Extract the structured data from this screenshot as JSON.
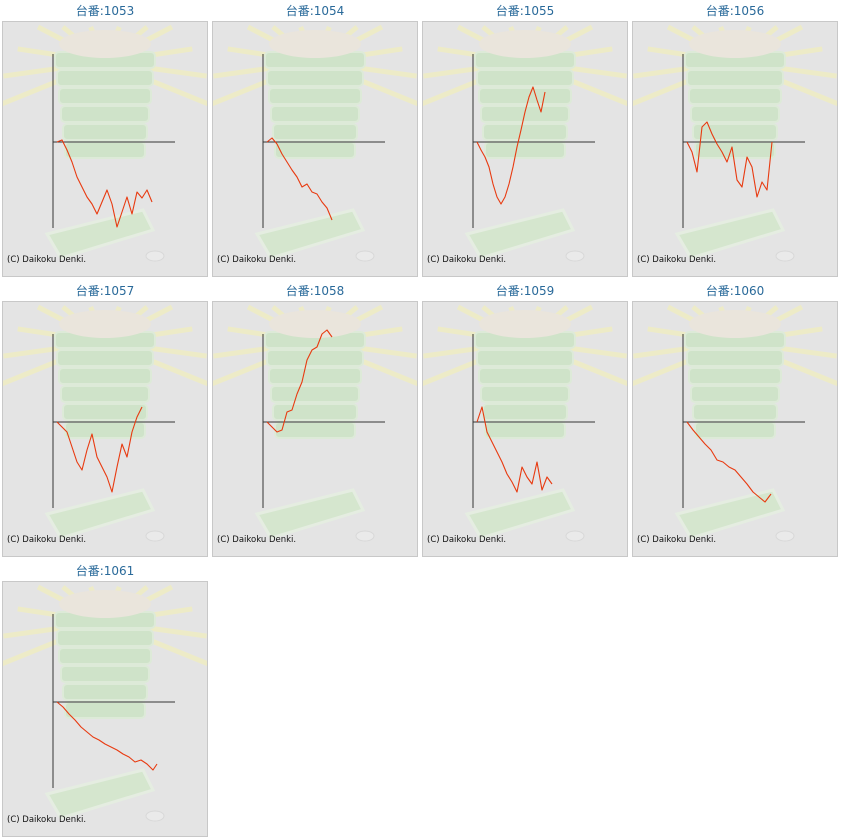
{
  "colors": {
    "title": "#2a6a9a",
    "line": "#e83a10",
    "axis": "#333333",
    "panel_bg": "#e4e4e4"
  },
  "copyright": "(C) Daikoku Denki.",
  "chart_data": [
    {
      "type": "line",
      "title": "台番:1053",
      "x": [
        0,
        5,
        10,
        15,
        20,
        25,
        30,
        35,
        40,
        45,
        50,
        55,
        60,
        65,
        70,
        75,
        80,
        85,
        90,
        95
      ],
      "values": [
        0,
        2,
        -8,
        -20,
        -35,
        -45,
        -55,
        -62,
        -72,
        -60,
        -48,
        -62,
        -85,
        -70,
        -55,
        -72,
        -50,
        -56,
        -48,
        -60
      ]
    },
    {
      "type": "line",
      "title": "台番:1054",
      "x": [
        0,
        5,
        10,
        15,
        20,
        25,
        30,
        35,
        40,
        45,
        50,
        55,
        60,
        65
      ],
      "values": [
        0,
        4,
        -2,
        -12,
        -20,
        -28,
        -35,
        -45,
        -42,
        -50,
        -52,
        -60,
        -66,
        -78
      ]
    },
    {
      "type": "line",
      "title": "台番:1055",
      "x": [
        0,
        4,
        8,
        12,
        16,
        20,
        24,
        28,
        32,
        36,
        40,
        44,
        48,
        52,
        56,
        60,
        64,
        68
      ],
      "values": [
        0,
        -8,
        -15,
        -25,
        -42,
        -55,
        -62,
        -55,
        -42,
        -25,
        -5,
        12,
        30,
        45,
        55,
        42,
        30,
        50
      ]
    },
    {
      "type": "line",
      "title": "台番:1056",
      "x": [
        0,
        5,
        10,
        15,
        20,
        25,
        30,
        35,
        40,
        45,
        50,
        55,
        60,
        65,
        70,
        75,
        80,
        85
      ],
      "values": [
        0,
        -10,
        -30,
        15,
        20,
        8,
        -2,
        -10,
        -20,
        -5,
        -38,
        -45,
        -15,
        -25,
        -55,
        -40,
        -48,
        0
      ]
    },
    {
      "type": "line",
      "title": "台番:1057",
      "x": [
        0,
        5,
        10,
        15,
        20,
        25,
        30,
        35,
        40,
        45,
        50,
        55,
        60,
        65,
        70,
        75,
        80,
        85
      ],
      "values": [
        0,
        -5,
        -10,
        -25,
        -40,
        -48,
        -28,
        -12,
        -35,
        -45,
        -55,
        -70,
        -45,
        -22,
        -35,
        -10,
        5,
        15
      ]
    },
    {
      "type": "line",
      "title": "台番:1058",
      "x": [
        0,
        5,
        10,
        15,
        20,
        25,
        30,
        35,
        40,
        45,
        50,
        55,
        60,
        65
      ],
      "values": [
        0,
        -5,
        -10,
        -8,
        10,
        12,
        28,
        40,
        62,
        72,
        75,
        88,
        92,
        85
      ]
    },
    {
      "type": "line",
      "title": "台番:1059",
      "x": [
        0,
        5,
        10,
        15,
        20,
        25,
        30,
        35,
        40,
        45,
        50,
        55,
        60,
        65,
        70,
        75
      ],
      "values": [
        0,
        15,
        -10,
        -20,
        -30,
        -40,
        -52,
        -60,
        -70,
        -45,
        -55,
        -62,
        -40,
        -68,
        -55,
        -62
      ]
    },
    {
      "type": "line",
      "title": "台番:1060",
      "x": [
        0,
        6,
        12,
        18,
        24,
        30,
        36,
        42,
        48,
        54,
        60,
        66,
        72,
        78,
        84
      ],
      "values": [
        0,
        -8,
        -15,
        -22,
        -28,
        -38,
        -40,
        -45,
        -48,
        -55,
        -62,
        -70,
        -75,
        -80,
        -72
      ]
    },
    {
      "type": "line",
      "title": "台番:1061",
      "x": [
        0,
        6,
        12,
        18,
        24,
        30,
        36,
        42,
        48,
        54,
        60,
        66,
        72,
        78,
        84,
        90,
        96,
        100
      ],
      "values": [
        0,
        -5,
        -12,
        -18,
        -25,
        -30,
        -35,
        -38,
        -42,
        -45,
        -48,
        -52,
        -55,
        -60,
        -58,
        -62,
        -68,
        -62
      ]
    }
  ]
}
